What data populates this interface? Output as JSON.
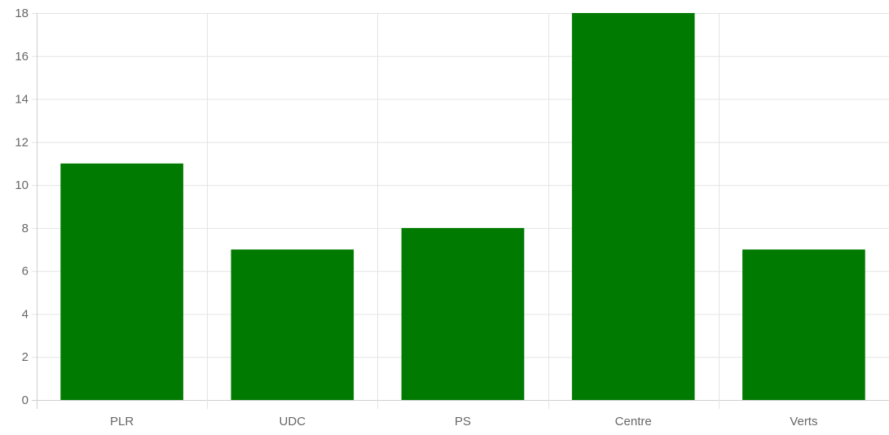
{
  "chart_data": {
    "type": "bar",
    "categories": [
      "PLR",
      "UDC",
      "PS",
      "Centre",
      "Verts"
    ],
    "values": [
      11,
      7,
      8,
      18,
      7
    ],
    "ylim": [
      0,
      18
    ],
    "yticks": [
      0,
      2,
      4,
      6,
      8,
      10,
      12,
      14,
      16,
      18
    ],
    "grid": true,
    "bar_color": "#007a00",
    "grid_color": "#e4e4e4",
    "text_color": "#666666"
  }
}
